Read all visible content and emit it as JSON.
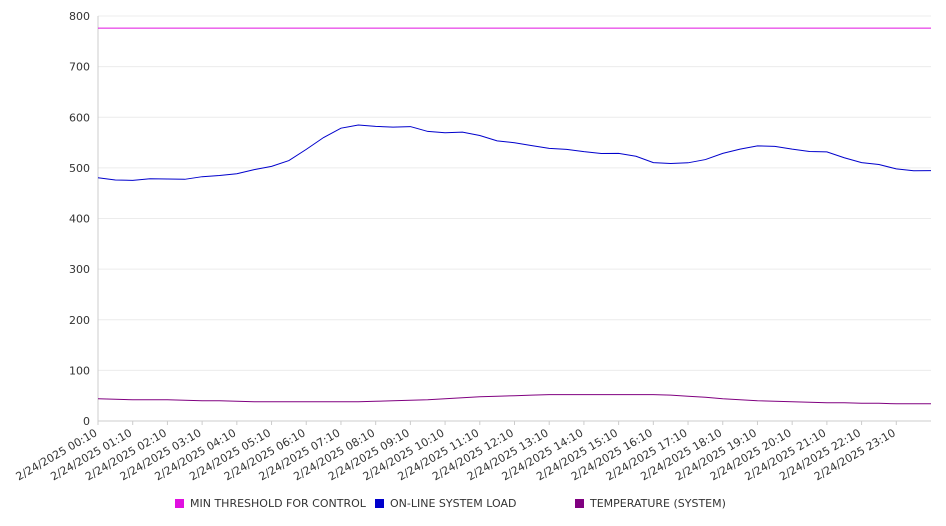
{
  "chart_data": {
    "type": "line",
    "ylim": [
      0,
      800
    ],
    "yticks": [
      0,
      100,
      200,
      300,
      400,
      500,
      600,
      700,
      800
    ],
    "xticks": [
      "2/24/2025 00:10",
      "2/24/2025 01:10",
      "2/24/2025 02:10",
      "2/24/2025 03:10",
      "2/24/2025 04:10",
      "2/24/2025 05:10",
      "2/24/2025 06:10",
      "2/24/2025 07:10",
      "2/24/2025 08:10",
      "2/24/2025 09:10",
      "2/24/2025 10:10",
      "2/24/2025 11:10",
      "2/24/2025 12:10",
      "2/24/2025 13:10",
      "2/24/2025 14:10",
      "2/24/2025 15:10",
      "2/24/2025 16:10",
      "2/24/2025 17:10",
      "2/24/2025 18:10",
      "2/24/2025 19:10",
      "2/24/2025 20:10",
      "2/24/2025 21:10",
      "2/24/2025 22:10",
      "2/24/2025 23:10"
    ],
    "x": [
      "00:10",
      "00:40",
      "01:10",
      "01:40",
      "02:10",
      "02:40",
      "03:10",
      "03:40",
      "04:10",
      "04:40",
      "05:10",
      "05:40",
      "06:10",
      "06:40",
      "07:10",
      "07:40",
      "08:10",
      "08:40",
      "09:10",
      "09:40",
      "10:10",
      "10:40",
      "11:10",
      "11:40",
      "12:10",
      "12:40",
      "13:10",
      "13:40",
      "14:10",
      "14:40",
      "15:10",
      "15:40",
      "16:10",
      "16:40",
      "17:10",
      "17:40",
      "18:10",
      "18:40",
      "19:10",
      "19:40",
      "20:10",
      "20:40",
      "21:10",
      "21:40",
      "22:10",
      "22:40",
      "23:10",
      "23:40",
      "24:10"
    ],
    "series": [
      {
        "name": "MIN THRESHOLD FOR CONTROL",
        "color": "#e010e0",
        "values": [
          776,
          776,
          776,
          776,
          776,
          776,
          776,
          776,
          776,
          776,
          776,
          776,
          776,
          776,
          776,
          776,
          776,
          776,
          776,
          776,
          776,
          776,
          776,
          776,
          776,
          776,
          776,
          776,
          776,
          776,
          776,
          776,
          776,
          776,
          776,
          776,
          776,
          776,
          776,
          776,
          776,
          776,
          776,
          776,
          776,
          776,
          776,
          776,
          776
        ]
      },
      {
        "name": "ON-LINE SYSTEM LOAD",
        "color": "#0000cc",
        "values": [
          479,
          476,
          477,
          477,
          478,
          479,
          481,
          485,
          490,
          495,
          503,
          516,
          535,
          560,
          580,
          583,
          582,
          582,
          580,
          572,
          571,
          569,
          564,
          555,
          548,
          544,
          540,
          535,
          532,
          530,
          527,
          523,
          512,
          507,
          510,
          518,
          527,
          537,
          545,
          541,
          537,
          534,
          530,
          520,
          512,
          505,
          498,
          496,
          493
        ]
      },
      {
        "name": "TEMPERATURE (SYSTEM)",
        "color": "#800080",
        "values": [
          44,
          43,
          42,
          42,
          42,
          41,
          40,
          40,
          39,
          38,
          38,
          38,
          38,
          38,
          38,
          38,
          39,
          40,
          41,
          42,
          44,
          46,
          48,
          49,
          50,
          51,
          52,
          52,
          52,
          52,
          52,
          52,
          52,
          51,
          49,
          47,
          44,
          42,
          40,
          39,
          38,
          37,
          36,
          36,
          35,
          35,
          34,
          34,
          34
        ]
      }
    ],
    "grid": true,
    "legend": "bottom"
  }
}
